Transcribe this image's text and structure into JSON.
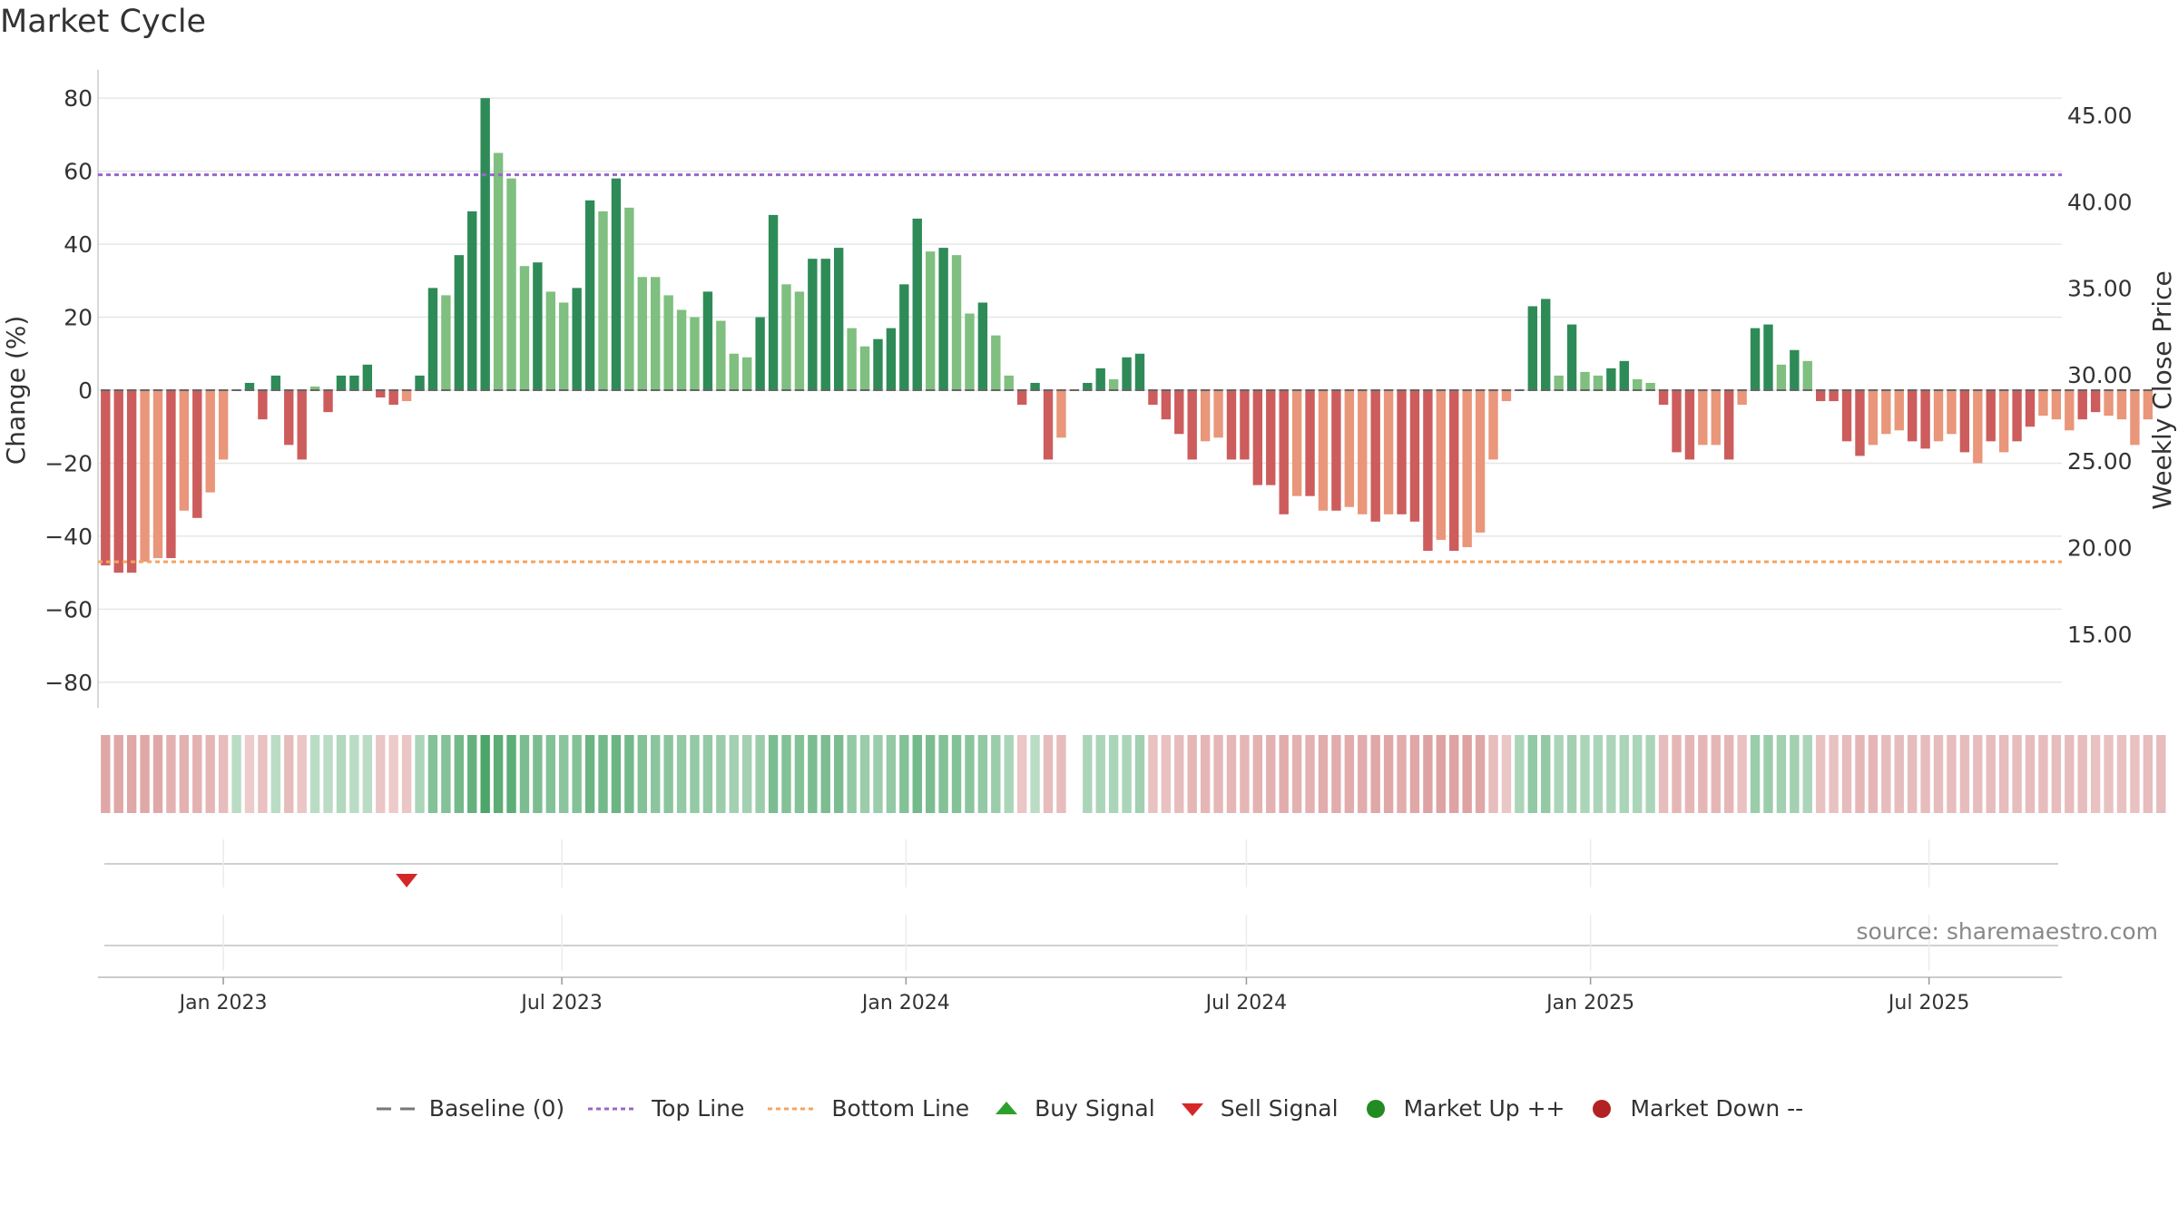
{
  "title": "Market Cycle",
  "source": "source: sharemaestro.com",
  "colors": {
    "up_strong": "#2e8b57",
    "up_light": "#7fbf7f",
    "down_strong": "#cd5c5c",
    "down_light": "#e9967a",
    "top_line": "#9966cc",
    "bottom_line": "#f4a460",
    "buy": "#2ca02c",
    "sell": "#d62728",
    "market_up": "#228b22",
    "market_down": "#b22222"
  },
  "legend": [
    {
      "label": "Baseline (0)",
      "icon": "dash-line"
    },
    {
      "label": "Top Line",
      "icon": "dotted-purple-line"
    },
    {
      "label": "Bottom Line",
      "icon": "dotted-orange-line"
    },
    {
      "label": "Buy Signal",
      "icon": "triangle-up"
    },
    {
      "label": "Sell Signal",
      "icon": "triangle-down"
    },
    {
      "label": "Market Up ++",
      "icon": "green-dot"
    },
    {
      "label": "Market Down --",
      "icon": "red-dot"
    }
  ],
  "chart_data": {
    "type": "bar",
    "ylabel": "Change (%)",
    "y2label": "Weekly Close Price",
    "ylim": [
      -87,
      87
    ],
    "yticks": [
      80,
      60,
      40,
      20,
      0,
      -20,
      -40,
      -60,
      -80
    ],
    "y2ticks": [
      "45.00",
      "40.00",
      "35.00",
      "30.00",
      "25.00",
      "20.00",
      "15.00"
    ],
    "x_start": "2022-10-26",
    "x_end": "2025-09-10",
    "xticks": [
      {
        "label": "Jan 2023",
        "date": "2023-01-01"
      },
      {
        "label": "Jul 2023",
        "date": "2023-07-01"
      },
      {
        "label": "Jan 2024",
        "date": "2024-01-01"
      },
      {
        "label": "Jul 2024",
        "date": "2024-07-01"
      },
      {
        "label": "Jan 2025",
        "date": "2025-01-01"
      },
      {
        "label": "Jul 2025",
        "date": "2025-07-01"
      }
    ],
    "top_line": 59,
    "bottom_line": -47,
    "start_week": "2022-10-27",
    "values": [
      -48,
      -50,
      -50,
      -47,
      -46,
      -46,
      -33,
      -35,
      -28,
      -19,
      0,
      2,
      -8,
      4,
      -15,
      -19,
      1,
      -6,
      4,
      4,
      7,
      -2,
      -4,
      -3,
      4,
      28,
      26,
      37,
      49,
      80,
      65,
      58,
      34,
      35,
      27,
      24,
      28,
      52,
      49,
      58,
      50,
      31,
      31,
      26,
      22,
      20,
      27,
      19,
      10,
      9,
      20,
      48,
      29,
      27,
      36,
      36,
      39,
      17,
      12,
      14,
      17,
      29,
      47,
      38,
      39,
      37,
      21,
      24,
      15,
      4,
      -4,
      2,
      -19,
      -13,
      0,
      2,
      6,
      3,
      9,
      10,
      -4,
      -8,
      -12,
      -19,
      -14,
      -13,
      -19,
      -19,
      -26,
      -26,
      -34,
      -29,
      -29,
      -33,
      -33,
      -32,
      -34,
      -36,
      -34,
      -34,
      -36,
      -44,
      -41,
      -44,
      -43,
      -39,
      -19,
      -3,
      0,
      23,
      25,
      4,
      18,
      5,
      4,
      6,
      8,
      3,
      2,
      -4,
      -17,
      -19,
      -15,
      -15,
      -19,
      -4,
      17,
      18,
      7,
      11,
      8,
      -3,
      -3,
      -14,
      -18,
      -15,
      -12,
      -11,
      -14,
      -16,
      -14,
      -12,
      -17,
      -20,
      -14,
      -17,
      -14,
      -10,
      -7,
      -8,
      -11,
      -8,
      -6,
      -7,
      -8,
      -15,
      -8
    ],
    "shades": [
      "s",
      "s",
      "s",
      "l",
      "l",
      "s",
      "l",
      "s",
      "l",
      "l",
      "l",
      "s",
      "s",
      "s",
      "s",
      "s",
      "l",
      "s",
      "s",
      "s",
      "s",
      "s",
      "s",
      "l",
      "s",
      "s",
      "l",
      "s",
      "s",
      "s",
      "l",
      "l",
      "l",
      "s",
      "l",
      "l",
      "s",
      "s",
      "l",
      "s",
      "l",
      "l",
      "l",
      "l",
      "l",
      "l",
      "s",
      "l",
      "l",
      "l",
      "s",
      "s",
      "l",
      "l",
      "s",
      "s",
      "s",
      "l",
      "l",
      "s",
      "s",
      "s",
      "s",
      "l",
      "s",
      "l",
      "l",
      "s",
      "l",
      "l",
      "s",
      "s",
      "s",
      "l",
      "s",
      "s",
      "s",
      "l",
      "s",
      "s",
      "s",
      "s",
      "s",
      "s",
      "l",
      "l",
      "s",
      "s",
      "s",
      "s",
      "s",
      "l",
      "s",
      "l",
      "s",
      "l",
      "l",
      "s",
      "l",
      "s",
      "s",
      "s",
      "l",
      "s",
      "l",
      "l",
      "l",
      "l",
      "l",
      "s",
      "s",
      "l",
      "s",
      "l",
      "l",
      "s",
      "s",
      "l",
      "l",
      "s",
      "s",
      "s",
      "l",
      "l",
      "s",
      "l",
      "s",
      "s",
      "l",
      "s",
      "l",
      "s",
      "s",
      "s",
      "s",
      "l",
      "l",
      "l",
      "s",
      "s",
      "l",
      "l",
      "s",
      "l",
      "s",
      "l",
      "s",
      "s",
      "l",
      "l",
      "l",
      "s",
      "s",
      "l",
      "l",
      "l",
      "l",
      "s",
      "s",
      "l"
    ],
    "market_state_strip": [
      -0.5,
      -0.5,
      -0.5,
      -0.5,
      -0.5,
      -0.4,
      -0.4,
      -0.4,
      -0.35,
      -0.3,
      0.2,
      -0.15,
      -0.25,
      0.2,
      -0.3,
      -0.2,
      0.2,
      0.2,
      0.25,
      0.2,
      0.2,
      -0.2,
      -0.15,
      -0.2,
      0.3,
      0.55,
      0.55,
      0.65,
      0.75,
      0.9,
      0.8,
      0.8,
      0.6,
      0.6,
      0.55,
      0.5,
      0.55,
      0.7,
      0.65,
      0.7,
      0.65,
      0.55,
      0.5,
      0.5,
      0.45,
      0.45,
      0.45,
      0.4,
      0.35,
      0.35,
      0.4,
      0.6,
      0.55,
      0.55,
      0.6,
      0.6,
      0.6,
      0.45,
      0.4,
      0.4,
      0.45,
      0.55,
      0.65,
      0.6,
      0.55,
      0.55,
      0.5,
      0.45,
      0.4,
      0.3,
      -0.2,
      0.2,
      -0.3,
      -0.3,
      null,
      0.3,
      0.3,
      0.3,
      0.3,
      0.35,
      -0.25,
      -0.25,
      -0.3,
      -0.35,
      -0.35,
      -0.35,
      -0.35,
      -0.35,
      -0.4,
      -0.4,
      -0.45,
      -0.4,
      -0.4,
      -0.45,
      -0.45,
      -0.45,
      -0.45,
      -0.5,
      -0.5,
      -0.45,
      -0.5,
      -0.55,
      -0.55,
      -0.55,
      -0.55,
      -0.5,
      -0.3,
      -0.2,
      0.3,
      0.45,
      0.45,
      0.3,
      0.35,
      0.3,
      0.3,
      0.3,
      0.3,
      0.3,
      0.3,
      -0.3,
      -0.35,
      -0.35,
      -0.35,
      -0.35,
      -0.35,
      -0.25,
      0.4,
      0.4,
      0.35,
      0.35,
      0.3,
      -0.25,
      -0.25,
      -0.3,
      -0.35,
      -0.35,
      -0.3,
      -0.3,
      -0.3,
      -0.3,
      -0.3,
      -0.3,
      -0.3,
      -0.3,
      -0.3,
      -0.3,
      -0.3,
      -0.3,
      -0.3,
      -0.3,
      -0.3,
      -0.3,
      -0.25,
      -0.25,
      -0.25,
      -0.25,
      -0.3,
      -0.3
    ],
    "sell_signals": [
      "2023-04-06"
    ],
    "buy_signals": []
  }
}
